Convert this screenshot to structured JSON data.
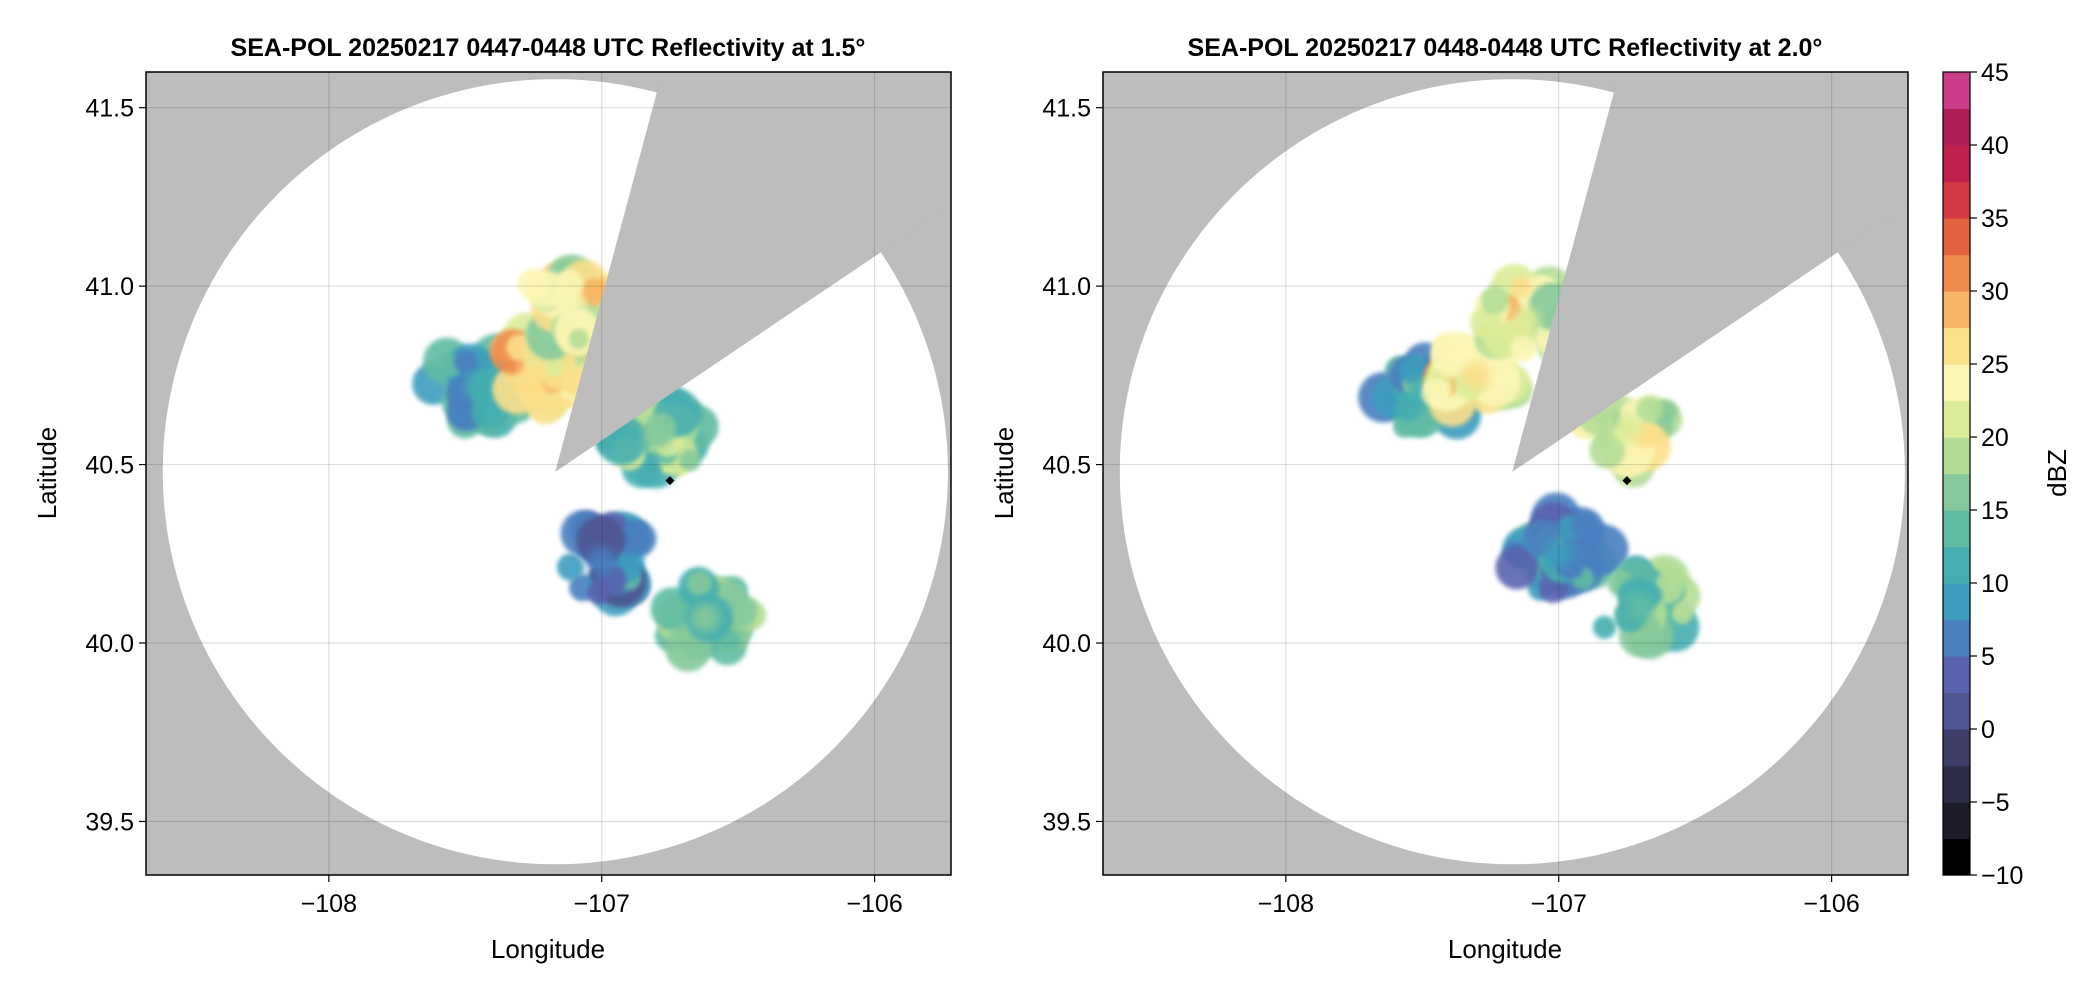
{
  "chart_data": [
    {
      "type": "heatmap",
      "title": "SEA-POL 20250217 0447-0448 UTC Reflectivity at 1.5°",
      "xlabel": "Longitude",
      "ylabel": "Latitude",
      "xlim": [
        -108.67,
        -105.72
      ],
      "ylim": [
        39.35,
        41.6
      ],
      "xticks": [
        -108,
        -107,
        -106
      ],
      "xtick_labels": [
        "−108",
        "−107",
        "−106"
      ],
      "yticks": [
        39.5,
        40.0,
        40.5,
        41.0,
        41.5
      ],
      "ytick_labels": [
        "39.5",
        "40.0",
        "40.5",
        "41.0",
        "41.5"
      ],
      "grid": true,
      "background_color": "#bdbdbd",
      "radar_center": [
        -107.17,
        40.48
      ],
      "radar_range_lat_deg": 1.1,
      "blocked_sectors_deg_from_north": [
        [
          15,
          56
        ]
      ],
      "site_marker": [
        -106.75,
        40.455
      ],
      "echo_regions": [
        {
          "name": "northwest cluster",
          "center": [
            -107.45,
            40.72
          ],
          "dbz": 10
        },
        {
          "name": "north core",
          "center": [
            -107.25,
            40.76
          ],
          "dbz": 25
        },
        {
          "name": "north cells",
          "center": [
            -107.12,
            40.95
          ],
          "dbz": 23
        },
        {
          "name": "northeast sector",
          "center": [
            -106.8,
            40.58
          ],
          "dbz": 16
        },
        {
          "name": "south patch",
          "center": [
            -107.0,
            40.23
          ],
          "dbz": 7
        },
        {
          "name": "southeast patch",
          "center": [
            -106.62,
            40.07
          ],
          "dbz": 17
        }
      ]
    },
    {
      "type": "heatmap",
      "title": "SEA-POL 20250217 0448-0448 UTC Reflectivity at 2.0°",
      "xlabel": "Longitude",
      "ylabel": "Latitude",
      "xlim": [
        -108.67,
        -105.72
      ],
      "ylim": [
        39.35,
        41.6
      ],
      "xticks": [
        -108,
        -107,
        -106
      ],
      "xtick_labels": [
        "−108",
        "−107",
        "−106"
      ],
      "yticks": [
        39.5,
        40.0,
        40.5,
        41.0,
        41.5
      ],
      "ytick_labels": [
        "39.5",
        "40.0",
        "40.5",
        "41.0",
        "41.5"
      ],
      "grid": true,
      "background_color": "#bdbdbd",
      "radar_center": [
        -107.17,
        40.48
      ],
      "radar_range_lat_deg": 1.1,
      "blocked_sectors_deg_from_north": [
        [
          15,
          56
        ]
      ],
      "site_marker": [
        -106.75,
        40.455
      ],
      "echo_regions": [
        {
          "name": "northwest cluster",
          "center": [
            -107.5,
            40.7
          ],
          "dbz": 11
        },
        {
          "name": "north core",
          "center": [
            -107.3,
            40.75
          ],
          "dbz": 25
        },
        {
          "name": "north cells",
          "center": [
            -107.12,
            40.9
          ],
          "dbz": 22
        },
        {
          "name": "northeast sector",
          "center": [
            -106.75,
            40.6
          ],
          "dbz": 21
        },
        {
          "name": "south band",
          "center": [
            -107.0,
            40.25
          ],
          "dbz": 9
        },
        {
          "name": "southeast patch",
          "center": [
            -106.7,
            40.1
          ],
          "dbz": 14
        }
      ]
    }
  ],
  "colorbar": {
    "label": "dBZ",
    "min": -10,
    "max": 45,
    "step": 2.5,
    "ticks": [
      -10,
      -5,
      0,
      5,
      10,
      15,
      20,
      25,
      30,
      35,
      40,
      45
    ],
    "tick_labels": [
      "−10",
      "−5",
      "0",
      "5",
      "10",
      "15",
      "20",
      "25",
      "30",
      "35",
      "40",
      "45"
    ],
    "colors": [
      "#000000",
      "#1b1b2a",
      "#2e2e48",
      "#3e3e68",
      "#4f5590",
      "#5a63b0",
      "#4a7fc0",
      "#3d9dbe",
      "#45aeb0",
      "#61bca4",
      "#85c99c",
      "#b3dd97",
      "#dbed98",
      "#fbf6b5",
      "#fce08a",
      "#f7b565",
      "#ee8a4c",
      "#e2613e",
      "#d33a41",
      "#bf1f4b",
      "#b01e5a",
      "#cc3d8a",
      "#e87bb1",
      "#eba9d1",
      "#cdb0df",
      "#a27cc3",
      "#7e4ea7",
      "#4a1a63"
    ]
  }
}
